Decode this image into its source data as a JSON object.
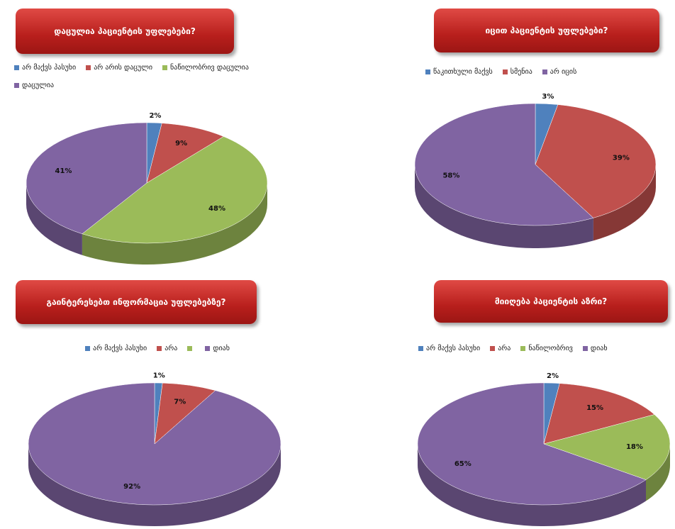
{
  "chart_data": [
    {
      "type": "pie3d",
      "title": "დაცულია პაციენტის უფლებები?",
      "categories": [
        "არ მაქვს პასუხი",
        "არ არის დაცული",
        "ნაწილობრივ დაცულია",
        "დაცულია"
      ],
      "values": [
        2,
        9,
        48,
        41
      ],
      "value_labels": [
        "2%",
        "9%",
        "48%",
        "41%"
      ],
      "colors": [
        "#4f81bd",
        "#c0504d",
        "#9bbb59",
        "#8064a2"
      ]
    },
    {
      "type": "pie3d",
      "title": "იცით პაციენტის უფლებები?",
      "categories": [
        "წაკითხული მაქვს",
        "სმენია",
        "არ იცის"
      ],
      "values": [
        3,
        39,
        58
      ],
      "value_labels": [
        "3%",
        "39%",
        "58%"
      ],
      "colors": [
        "#4f81bd",
        "#c0504d",
        "#8064a2"
      ]
    },
    {
      "type": "pie3d",
      "title": "გაინტერესებთ ინფორმაცია უფლებებზე?",
      "categories": [
        "არ მაქვს პასუხი",
        "არა",
        null,
        "დიახ"
      ],
      "values": [
        1,
        7,
        null,
        92
      ],
      "value_labels": [
        "1%",
        "7%",
        null,
        "92%"
      ],
      "colors": [
        "#4f81bd",
        "#c0504d",
        "#9bbb59",
        "#8064a2"
      ]
    },
    {
      "type": "pie3d",
      "title": "მიიღება პაციენტის აზრი?",
      "categories": [
        "არ მაქვს პასუხი",
        "არა",
        "ნაწილობრივ",
        "დიახ"
      ],
      "values": [
        2,
        15,
        18,
        65
      ],
      "value_labels": [
        "2%",
        "15%",
        "18%",
        "65%"
      ],
      "colors": [
        "#4f81bd",
        "#c0504d",
        "#9bbb59",
        "#8064a2"
      ]
    }
  ]
}
